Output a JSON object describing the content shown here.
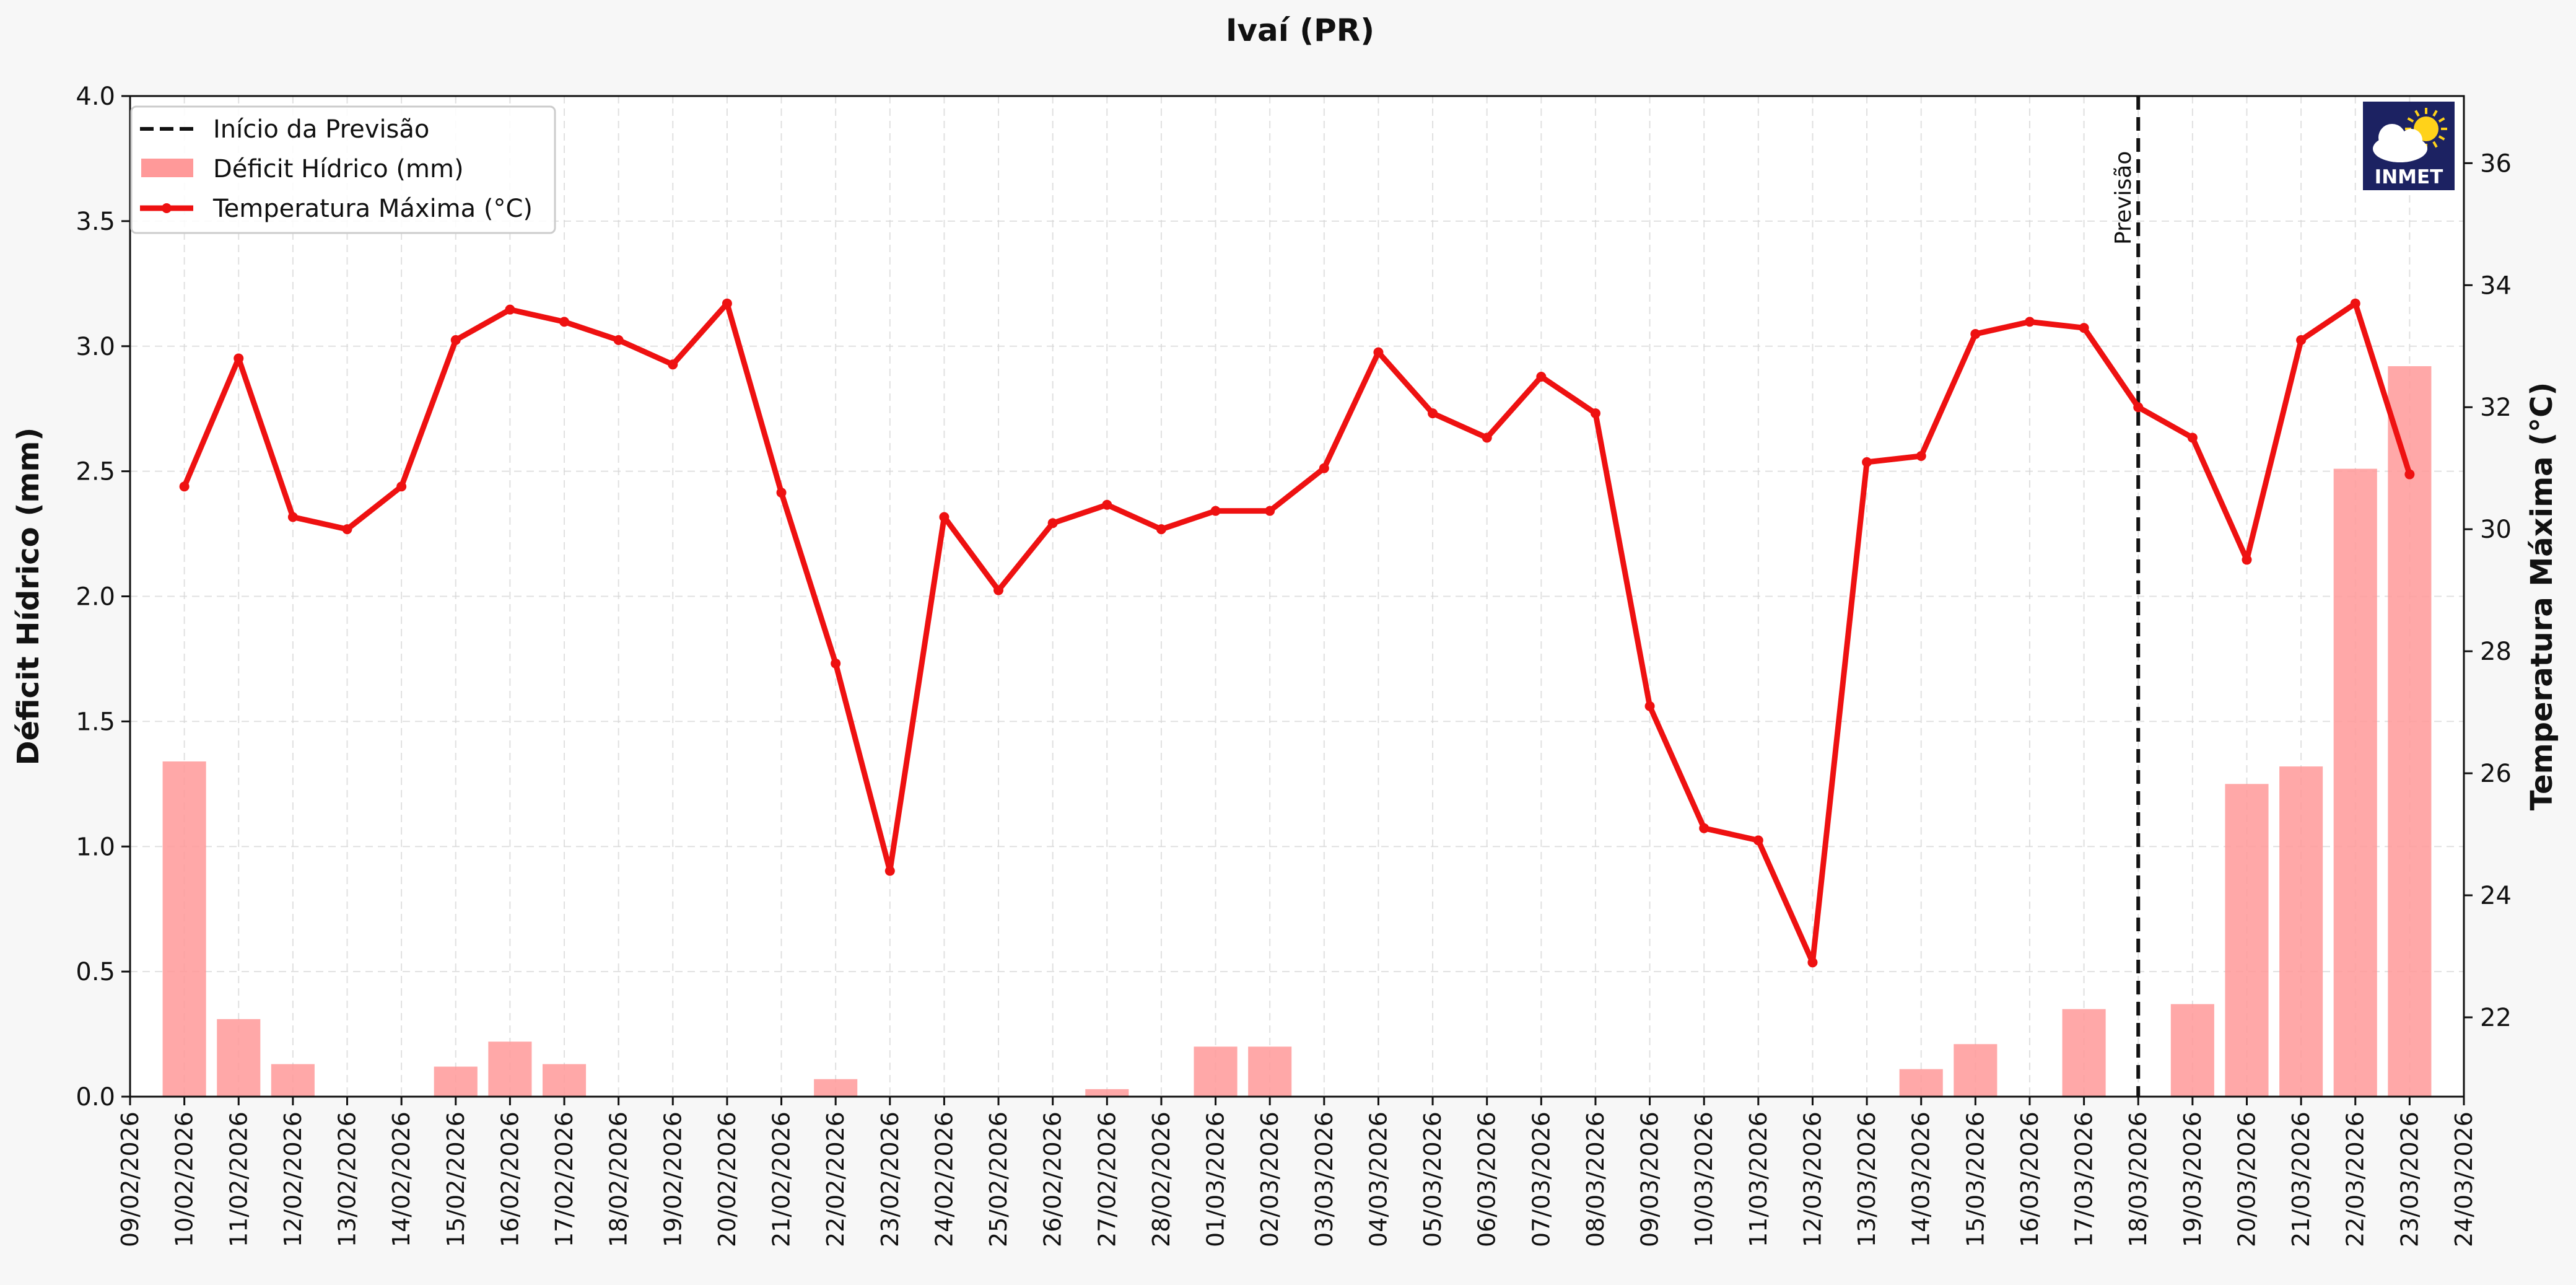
{
  "chart_data": {
    "type": "bar+line",
    "title": "Ivaí (PR)",
    "ylabel_left": "Déficit Hídrico (mm)",
    "ylabel_right": "Temperatura Máxima (°C)",
    "ylim_left": [
      0,
      4.0
    ],
    "ylim_right": [
      20.7,
      37.1
    ],
    "yticks_left": [
      "0.0",
      "0.5",
      "1.0",
      "1.5",
      "2.0",
      "2.5",
      "3.0",
      "3.5",
      "4.0"
    ],
    "yticks_right": [
      "22",
      "24",
      "26",
      "28",
      "30",
      "32",
      "34",
      "36"
    ],
    "x_range": [
      "09/02/2026",
      "24/03/2026"
    ],
    "xtick_labels": [
      "09/02/2026",
      "10/02/2026",
      "11/02/2026",
      "12/02/2026",
      "13/02/2026",
      "14/02/2026",
      "15/02/2026",
      "16/02/2026",
      "17/02/2026",
      "18/02/2026",
      "19/02/2026",
      "20/02/2026",
      "21/02/2026",
      "22/02/2026",
      "23/02/2026",
      "24/02/2026",
      "25/02/2026",
      "26/02/2026",
      "27/02/2026",
      "28/02/2026",
      "01/03/2026",
      "02/03/2026",
      "03/03/2026",
      "04/03/2026",
      "05/03/2026",
      "06/03/2026",
      "07/03/2026",
      "08/03/2026",
      "09/03/2026",
      "10/03/2026",
      "11/03/2026",
      "12/03/2026",
      "13/03/2026",
      "14/03/2026",
      "15/03/2026",
      "16/03/2026",
      "17/03/2026",
      "18/03/2026",
      "19/03/2026",
      "20/03/2026",
      "21/03/2026",
      "22/03/2026",
      "23/03/2026",
      "24/03/2026"
    ],
    "dates": [
      "10/02/2026",
      "11/02/2026",
      "12/02/2026",
      "13/02/2026",
      "14/02/2026",
      "15/02/2026",
      "16/02/2026",
      "17/02/2026",
      "18/02/2026",
      "19/02/2026",
      "20/02/2026",
      "21/02/2026",
      "22/02/2026",
      "23/02/2026",
      "24/02/2026",
      "25/02/2026",
      "26/02/2026",
      "27/02/2026",
      "28/02/2026",
      "01/03/2026",
      "02/03/2026",
      "03/03/2026",
      "04/03/2026",
      "05/03/2026",
      "06/03/2026",
      "07/03/2026",
      "08/03/2026",
      "09/03/2026",
      "10/03/2026",
      "11/03/2026",
      "12/03/2026",
      "13/03/2026",
      "14/03/2026",
      "15/03/2026",
      "16/03/2026",
      "17/03/2026",
      "18/03/2026",
      "19/03/2026",
      "20/03/2026",
      "21/03/2026",
      "22/03/2026",
      "23/03/2026"
    ],
    "series": [
      {
        "name": "Déficit Hídrico (mm)",
        "type": "bar",
        "axis": "left",
        "color": "#ff9999",
        "values": [
          1.34,
          0.31,
          0.13,
          0,
          0,
          0.12,
          0.22,
          0.13,
          0,
          0,
          0,
          0,
          0.07,
          0,
          0,
          0,
          0,
          0.03,
          0,
          0.2,
          0.2,
          0,
          0,
          0,
          0,
          0,
          0,
          0,
          0,
          0,
          0,
          0,
          0.11,
          0.21,
          0,
          0.35,
          0,
          0.37,
          1.25,
          1.32,
          2.51,
          2.92
        ]
      },
      {
        "name": "Temperatura Máxima (°C)",
        "type": "line",
        "axis": "right",
        "color": "#ee1111",
        "values": [
          30.7,
          32.8,
          30.2,
          30.0,
          30.7,
          33.1,
          33.6,
          33.4,
          33.1,
          32.7,
          33.7,
          30.6,
          27.8,
          24.4,
          30.2,
          29.0,
          30.1,
          30.4,
          30.0,
          30.3,
          30.3,
          31.0,
          32.9,
          31.9,
          31.5,
          32.5,
          31.9,
          27.1,
          25.1,
          24.9,
          22.9,
          31.1,
          31.2,
          33.2,
          33.4,
          33.3,
          32.0,
          31.5,
          29.5,
          33.1,
          33.7,
          30.9
        ]
      }
    ],
    "forecast_start": "18/03/2026",
    "forecast_label": "Previsão",
    "legend": {
      "position": "top-left",
      "entries": [
        "Início da Previsão",
        "Déficit Hídrico (mm)",
        "Temperatura Máxima (°C)"
      ]
    },
    "grid": true,
    "logo_text": "INMET",
    "colors": {
      "bar": "#ff9999",
      "line": "#ee1111",
      "forecast_line": "#111111",
      "logo_bg": "#1c2262",
      "background": "#f7f7f7",
      "plot_background": "#ffffff"
    }
  }
}
